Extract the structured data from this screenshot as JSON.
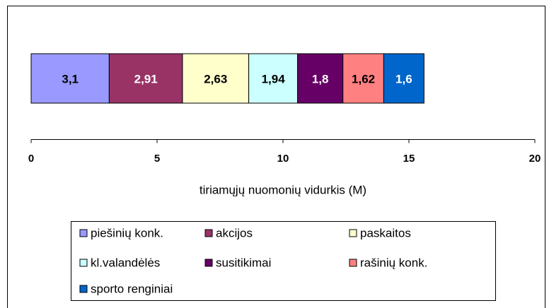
{
  "chart_data": {
    "type": "stacked-bar",
    "orientation": "horizontal",
    "x_label": "tiriamųjų nuomonių vidurkis (M)",
    "xlim": [
      0,
      20
    ],
    "xticks": [
      0,
      5,
      10,
      15,
      20
    ],
    "series": [
      {
        "name": "piešinių konk.",
        "color": "#9999ff",
        "values": [
          3.1
        ],
        "value_labels": [
          "3,1"
        ]
      },
      {
        "name": "akcijos",
        "color": "#993366",
        "values": [
          2.91
        ],
        "value_labels": [
          "2,91"
        ]
      },
      {
        "name": "paskaitos",
        "color": "#ffffcc",
        "values": [
          2.63
        ],
        "value_labels": [
          "2,63"
        ]
      },
      {
        "name": "kl.valandėlės",
        "color": "#ccffff",
        "values": [
          1.94
        ],
        "value_labels": [
          "1,94"
        ]
      },
      {
        "name": "susitikimai",
        "color": "#660066",
        "values": [
          1.8
        ],
        "value_labels": [
          "1,8"
        ]
      },
      {
        "name": "rašinių konk.",
        "color": "#ff8080",
        "values": [
          1.62
        ],
        "value_labels": [
          "1,62"
        ]
      },
      {
        "name": "sporto renginiai",
        "color": "#0066cc",
        "values": [
          1.6
        ],
        "value_labels": [
          "1,6"
        ]
      }
    ],
    "legend": "bottom"
  }
}
